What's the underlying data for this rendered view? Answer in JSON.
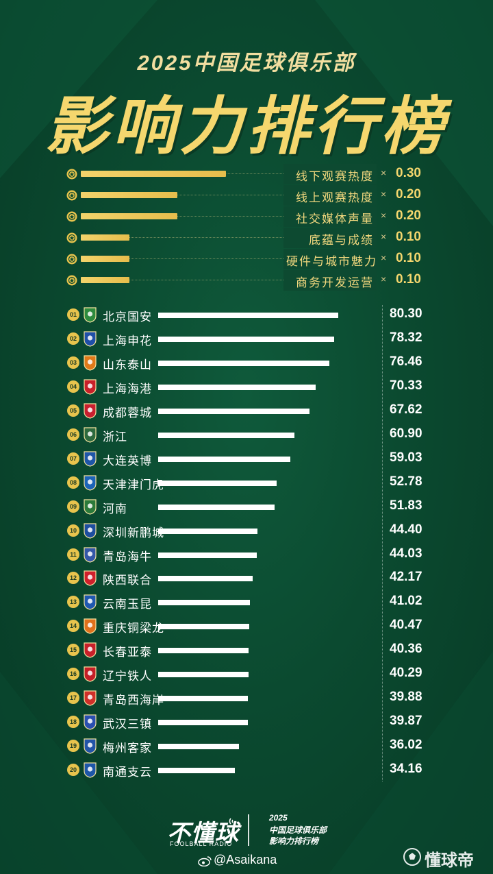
{
  "header": {
    "subtitle": "2025中国足球俱乐部",
    "title": "影响力排行榜"
  },
  "colors": {
    "background": "#0b4a30",
    "gold": "#f5d76e",
    "bar_white": "#ffffff"
  },
  "weights": [
    {
      "name": "线下观赛热度",
      "multiplier": "×",
      "value": "0.30",
      "weight": 0.3
    },
    {
      "name": "线上观赛热度",
      "multiplier": "×",
      "value": "0.20",
      "weight": 0.2
    },
    {
      "name": "社交媒体声量",
      "multiplier": "×",
      "value": "0.20",
      "weight": 0.2
    },
    {
      "name": "底蕴与成绩",
      "multiplier": "×",
      "value": "0.10",
      "weight": 0.1
    },
    {
      "name": "硬件与城市魅力",
      "multiplier": "×",
      "value": "0.10",
      "weight": 0.1
    },
    {
      "name": "商务开发运营",
      "multiplier": "×",
      "value": "0.10",
      "weight": 0.1
    }
  ],
  "chart_data": {
    "type": "bar",
    "orientation": "horizontal",
    "title": "影响力排行榜",
    "categories": [
      "北京国安",
      "上海申花",
      "山东泰山",
      "上海海港",
      "成都蓉城",
      "浙江",
      "大连英博",
      "天津津门虎",
      "河南",
      "深圳新鹏城",
      "青岛海牛",
      "陕西联合",
      "云南玉昆",
      "重庆铜梁龙",
      "长春亚泰",
      "辽宁铁人",
      "青岛西海岸",
      "武汉三镇",
      "梅州客家",
      "南通支云"
    ],
    "ranks": [
      "01",
      "02",
      "03",
      "04",
      "05",
      "06",
      "07",
      "08",
      "09",
      "10",
      "11",
      "12",
      "13",
      "14",
      "15",
      "16",
      "17",
      "18",
      "19",
      "20"
    ],
    "values": [
      80.3,
      78.32,
      76.46,
      70.33,
      67.62,
      60.9,
      59.03,
      52.78,
      51.83,
      44.4,
      44.03,
      42.17,
      41.02,
      40.47,
      40.36,
      40.29,
      39.88,
      39.87,
      36.02,
      34.16
    ],
    "value_labels": [
      "80.30",
      "78.32",
      "76.46",
      "70.33",
      "67.62",
      "60.90",
      "59.03",
      "52.78",
      "51.83",
      "44.40",
      "44.03",
      "42.17",
      "41.02",
      "40.47",
      "40.36",
      "40.29",
      "39.88",
      "39.87",
      "36.02",
      "34.16"
    ],
    "badge_colors": [
      "#2e8b3e",
      "#1f4fa8",
      "#e07a1a",
      "#c8202a",
      "#c81f2f",
      "#2d6a3e",
      "#1e56a8",
      "#1c64b8",
      "#2b7a3a",
      "#1e4ea0",
      "#3457a8",
      "#d0202c",
      "#1f58b0",
      "#e0711c",
      "#c8202a",
      "#c41f27",
      "#d0302a",
      "#2a4fb0",
      "#2254a8",
      "#1e56a8"
    ],
    "xlim": [
      0,
      100
    ],
    "grid": false
  },
  "footer": {
    "logo": "不懂球",
    "logo_sub": "FOOLBALL RADIO",
    "line1": "2025",
    "line2": "中国足球俱乐部",
    "line3": "影响力排行榜",
    "handle": "@Asaikana",
    "corner": "懂球帝"
  }
}
